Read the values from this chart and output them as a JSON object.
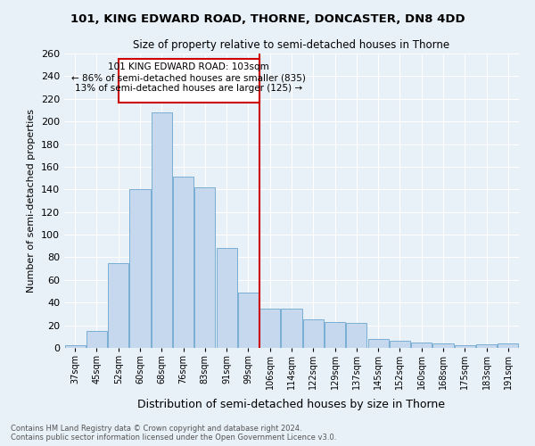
{
  "title_line1": "101, KING EDWARD ROAD, THORNE, DONCASTER, DN8 4DD",
  "title_line2": "Size of property relative to semi-detached houses in Thorne",
  "xlabel": "Distribution of semi-detached houses by size in Thorne",
  "ylabel": "Number of semi-detached properties",
  "footnote": "Contains HM Land Registry data © Crown copyright and database right 2024.\nContains public sector information licensed under the Open Government Licence v3.0.",
  "categories": [
    "37sqm",
    "45sqm",
    "52sqm",
    "60sqm",
    "68sqm",
    "76sqm",
    "83sqm",
    "91sqm",
    "99sqm",
    "106sqm",
    "114sqm",
    "122sqm",
    "129sqm",
    "137sqm",
    "145sqm",
    "152sqm",
    "160sqm",
    "168sqm",
    "175sqm",
    "183sqm",
    "191sqm"
  ],
  "values": [
    2,
    15,
    75,
    140,
    208,
    151,
    142,
    88,
    49,
    35,
    35,
    25,
    23,
    22,
    8,
    6,
    5,
    4,
    2,
    3,
    4
  ],
  "bar_color": "#c5d8ee",
  "bar_edge_color": "#7aaed4",
  "background_color": "#e8f0f8",
  "plot_bg_color": "#e8f0f8",
  "grid_color": "#ffffff",
  "marker_label": "101 KING EDWARD ROAD: 103sqm",
  "annotation_line1": "← 86% of semi-detached houses are smaller (835)",
  "annotation_line2": "13% of semi-detached houses are larger (125) →",
  "box_color": "#cc0000",
  "vline_x": 8.5,
  "ylim": [
    0,
    260
  ],
  "yticks": [
    0,
    20,
    40,
    60,
    80,
    100,
    120,
    140,
    160,
    180,
    200,
    220,
    240,
    260
  ]
}
